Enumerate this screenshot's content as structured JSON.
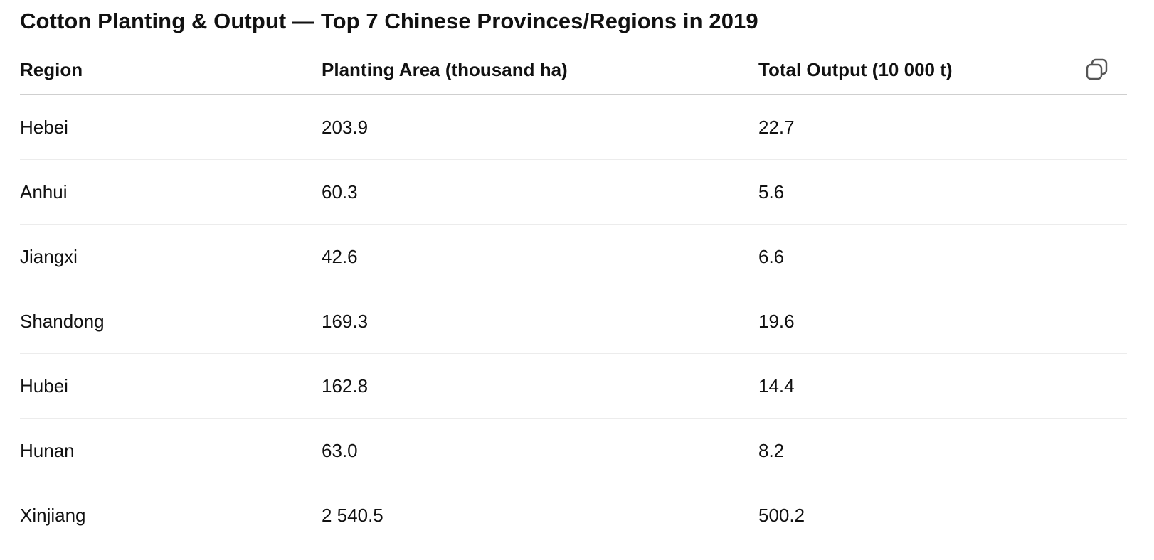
{
  "title": "Cotton Planting & Output — Top 7 Chinese Provinces/Regions in 2019",
  "table": {
    "headers": [
      "Region",
      "Planting Area (thousand ha)",
      "Total Output (10 000 t)"
    ],
    "rows": [
      [
        "Hebei",
        "203.9",
        "22.7"
      ],
      [
        "Anhui",
        "60.3",
        "5.6"
      ],
      [
        "Jiangxi",
        "42.6",
        "6.6"
      ],
      [
        "Shandong",
        "169.3",
        "19.6"
      ],
      [
        "Hubei",
        "162.8",
        "14.4"
      ],
      [
        "Hunan",
        "63.0",
        "8.2"
      ],
      [
        "Xinjiang",
        "2 540.5",
        "500.2"
      ]
    ]
  },
  "icons": {
    "copy": "copy-icon"
  }
}
